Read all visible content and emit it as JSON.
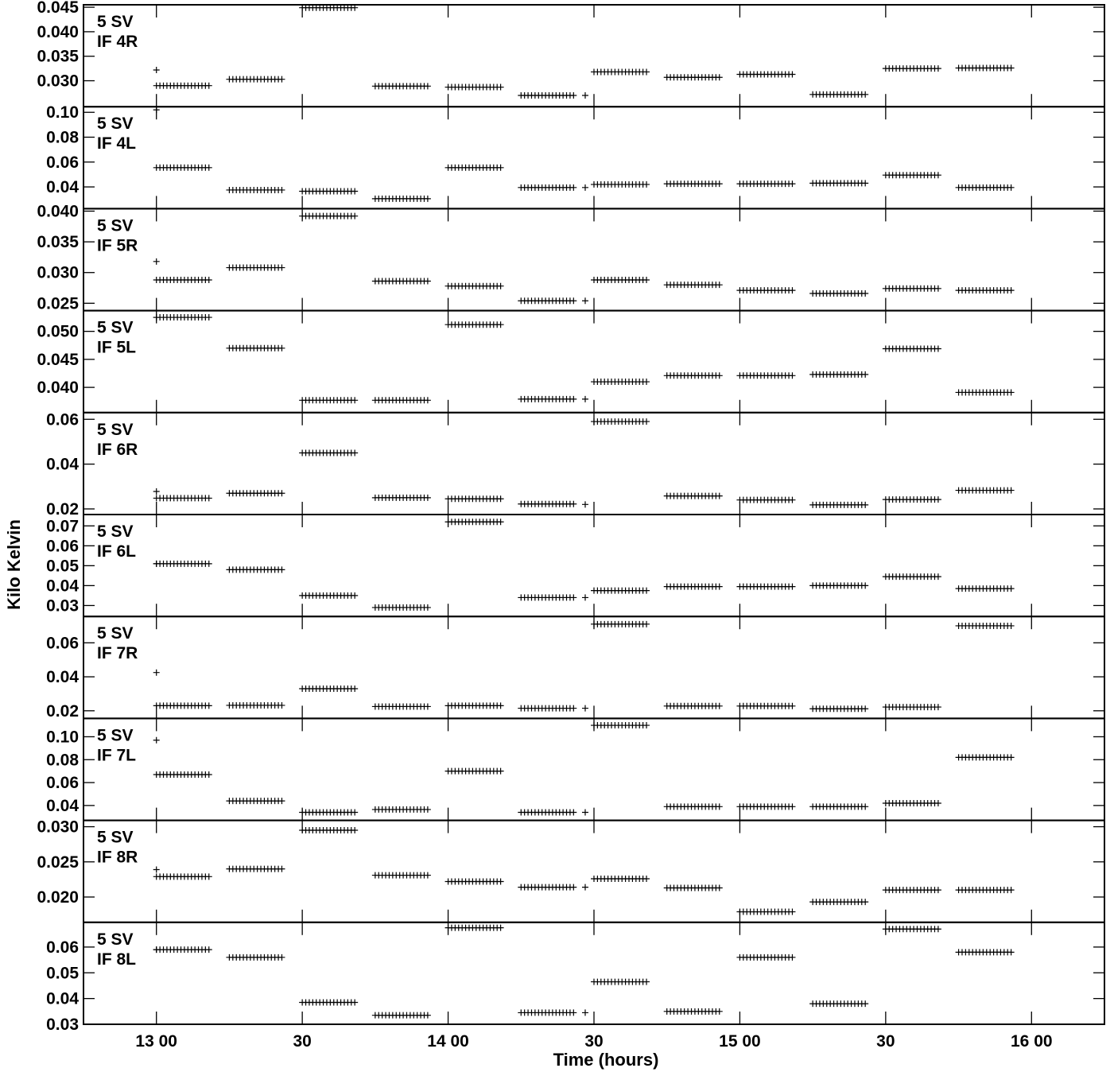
{
  "chart_data": {
    "type": "scatter",
    "xlabel": "Time (hours)",
    "ylabel": "Kilo Kelvin",
    "xlim": [
      12.75,
      16.25
    ],
    "x_ticks": [
      {
        "value": 13.0,
        "label": "13 00"
      },
      {
        "value": 13.5,
        "label": "30"
      },
      {
        "value": 14.0,
        "label": "14 00"
      },
      {
        "value": 14.5,
        "label": "30"
      },
      {
        "value": 15.0,
        "label": "15 00"
      },
      {
        "value": 15.5,
        "label": "30"
      },
      {
        "value": 16.0,
        "label": "16 00"
      }
    ],
    "scan_x_ranges": [
      [
        13.0,
        13.18
      ],
      [
        13.25,
        13.43
      ],
      [
        13.5,
        13.68
      ],
      [
        13.75,
        13.93
      ],
      [
        14.0,
        14.18
      ],
      [
        14.25,
        14.43
      ],
      [
        14.5,
        14.68
      ],
      [
        14.75,
        14.93
      ],
      [
        15.0,
        15.18
      ],
      [
        15.25,
        15.43
      ],
      [
        15.5,
        15.68
      ],
      [
        15.75,
        15.93
      ]
    ],
    "lone_points_x": [
      13.0,
      14.47
    ],
    "panels": [
      {
        "source": "5 SV",
        "if": "IF 4R",
        "ylim": [
          0.0247,
          0.0455
        ],
        "yticks": [
          {
            "v": 0.03,
            "l": "0.030"
          },
          {
            "v": 0.035,
            "l": "0.035"
          },
          {
            "v": 0.04,
            "l": "0.040"
          },
          {
            "v": 0.045,
            "l": "0.045"
          }
        ],
        "values": [
          0.029,
          0.0303,
          0.0449,
          0.0289,
          0.0287,
          0.027,
          0.0318,
          0.0307,
          0.0313,
          0.0272,
          0.0325,
          0.0326
        ],
        "lone_values": [
          0.0322,
          0.027
        ]
      },
      {
        "source": "5 SV",
        "if": "IF 4L",
        "ylim": [
          0.0225,
          0.1045
        ],
        "yticks": [
          {
            "v": 0.04,
            "l": "0.04"
          },
          {
            "v": 0.06,
            "l": "0.06"
          },
          {
            "v": 0.08,
            "l": "0.08"
          },
          {
            "v": 0.1,
            "l": "0.10"
          }
        ],
        "values": [
          0.0555,
          0.0375,
          0.0365,
          0.0305,
          0.0555,
          0.0395,
          0.042,
          0.0425,
          0.0425,
          0.043,
          0.0495,
          0.0395
        ],
        "lone_values": [
          0.102,
          0.0395
        ]
      },
      {
        "source": "5 SV",
        "if": "IF 5R",
        "ylim": [
          0.0238,
          0.0404
        ],
        "yticks": [
          {
            "v": 0.025,
            "l": "0.025"
          },
          {
            "v": 0.03,
            "l": "0.030"
          },
          {
            "v": 0.035,
            "l": "0.035"
          },
          {
            "v": 0.04,
            "l": "0.040"
          }
        ],
        "values": [
          0.0288,
          0.0308,
          0.0392,
          0.0286,
          0.0278,
          0.0254,
          0.0288,
          0.028,
          0.0271,
          0.0266,
          0.0274,
          0.0271
        ],
        "lone_values": [
          0.0318,
          0.0254
        ]
      },
      {
        "source": "5 SV",
        "if": "IF 5L",
        "ylim": [
          0.0355,
          0.0537
        ],
        "yticks": [
          {
            "v": 0.04,
            "l": "0.040"
          },
          {
            "v": 0.045,
            "l": "0.045"
          },
          {
            "v": 0.05,
            "l": "0.050"
          }
        ],
        "values": [
          0.0525,
          0.047,
          0.0377,
          0.0377,
          0.0512,
          0.0379,
          0.041,
          0.0421,
          0.0421,
          0.0423,
          0.0469,
          0.0391
        ],
        "lone_values": [
          0.0525,
          0.0379
        ]
      },
      {
        "source": "5 SV",
        "if": "IF 6R",
        "ylim": [
          0.0175,
          0.063
        ],
        "yticks": [
          {
            "v": 0.02,
            "l": "0.02"
          },
          {
            "v": 0.04,
            "l": "0.04"
          },
          {
            "v": 0.06,
            "l": "0.06"
          }
        ],
        "values": [
          0.0248,
          0.027,
          0.045,
          0.025,
          0.0245,
          0.0222,
          0.059,
          0.0258,
          0.024,
          0.0218,
          0.0242,
          0.0283
        ],
        "lone_values": [
          0.0278,
          0.022
        ]
      },
      {
        "source": "5 SV",
        "if": "IF 6L",
        "ylim": [
          0.0245,
          0.0757
        ],
        "yticks": [
          {
            "v": 0.03,
            "l": "0.03"
          },
          {
            "v": 0.04,
            "l": "0.04"
          },
          {
            "v": 0.05,
            "l": "0.05"
          },
          {
            "v": 0.06,
            "l": "0.06"
          },
          {
            "v": 0.07,
            "l": "0.07"
          }
        ],
        "values": [
          0.051,
          0.048,
          0.035,
          0.029,
          0.072,
          0.034,
          0.0375,
          0.0395,
          0.0395,
          0.04,
          0.0445,
          0.0385
        ],
        "lone_values": [
          0.051,
          0.034
        ]
      },
      {
        "source": "5 SV",
        "if": "IF 7R",
        "ylim": [
          0.0155,
          0.0755
        ],
        "yticks": [
          {
            "v": 0.02,
            "l": "0.02"
          },
          {
            "v": 0.04,
            "l": "0.04"
          },
          {
            "v": 0.06,
            "l": "0.06"
          }
        ],
        "values": [
          0.023,
          0.0232,
          0.033,
          0.0225,
          0.023,
          0.0215,
          0.071,
          0.0228,
          0.0228,
          0.0212,
          0.0222,
          0.07
        ],
        "lone_values": [
          0.0425,
          0.0215
        ]
      },
      {
        "source": "5 SV",
        "if": "IF 7L",
        "ylim": [
          0.027,
          0.116
        ],
        "yticks": [
          {
            "v": 0.04,
            "l": "0.04"
          },
          {
            "v": 0.06,
            "l": "0.06"
          },
          {
            "v": 0.08,
            "l": "0.08"
          },
          {
            "v": 0.1,
            "l": "0.10"
          }
        ],
        "values": [
          0.067,
          0.044,
          0.034,
          0.0365,
          0.07,
          0.034,
          0.11,
          0.039,
          0.039,
          0.039,
          0.042,
          0.082
        ],
        "lone_values": [
          0.097,
          0.034
        ]
      },
      {
        "source": "5 SV",
        "if": "IF 8R",
        "ylim": [
          0.0164,
          0.0309
        ],
        "yticks": [
          {
            "v": 0.02,
            "l": "0.020"
          },
          {
            "v": 0.025,
            "l": "0.025"
          },
          {
            "v": 0.03,
            "l": "0.030"
          }
        ],
        "values": [
          0.0229,
          0.024,
          0.0295,
          0.0231,
          0.0222,
          0.0214,
          0.0226,
          0.0213,
          0.0179,
          0.0193,
          0.021,
          0.021
        ],
        "lone_values": [
          0.0239,
          0.0214
        ]
      },
      {
        "source": "5 SV",
        "if": "IF 8L",
        "ylim": [
          0.03,
          0.0696
        ],
        "yticks": [
          {
            "v": 0.03,
            "l": "0.03"
          },
          {
            "v": 0.04,
            "l": "0.04"
          },
          {
            "v": 0.05,
            "l": "0.05"
          },
          {
            "v": 0.06,
            "l": "0.06"
          }
        ],
        "values": [
          0.059,
          0.056,
          0.0385,
          0.0335,
          0.0675,
          0.0345,
          0.0465,
          0.035,
          0.056,
          0.038,
          0.067,
          0.058
        ],
        "lone_values": [
          0.059,
          0.0345
        ]
      }
    ]
  }
}
